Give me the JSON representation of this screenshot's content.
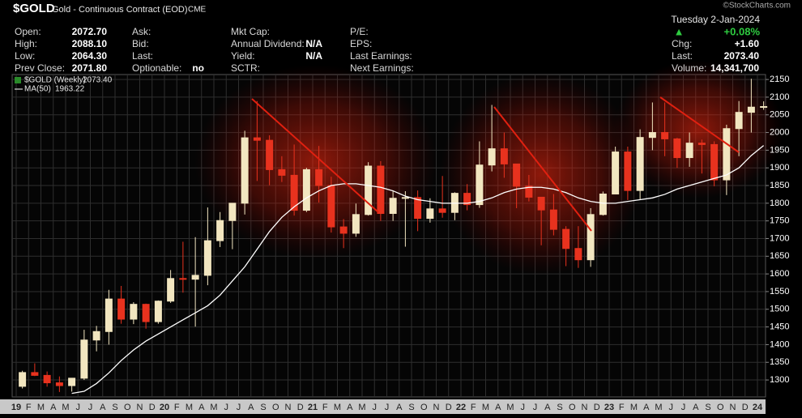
{
  "header": {
    "symbol": "$GOLD",
    "description": "Gold - Continuous Contract (EOD)",
    "exchange": "CME",
    "date": "Tuesday 2-Jan-2024",
    "arrow": "▲",
    "change_pct": "+0.08%",
    "watermark": "©StockCharts.com"
  },
  "stats": [
    [
      {
        "label": "Open:",
        "value": "2072.70"
      },
      {
        "label": "High:",
        "value": "2088.10"
      },
      {
        "label": "Low:",
        "value": "2064.30"
      },
      {
        "label": "Prev Close:",
        "value": "2071.80"
      }
    ],
    [
      {
        "label": "Ask:"
      },
      {
        "label": "Bid:"
      },
      {
        "label": "Last:"
      },
      {
        "label": "Optionable:",
        "value": "no"
      }
    ],
    [
      {
        "label": "Mkt Cap:"
      },
      {
        "label": "Annual Dividend:",
        "value": "N/A"
      },
      {
        "label": "Yield:",
        "value": "N/A"
      },
      {
        "label": "SCTR:"
      }
    ],
    [
      {
        "label": "P/E:"
      },
      {
        "label": "EPS:"
      },
      {
        "label": "Last Earnings:"
      },
      {
        "label": "Next Earnings:"
      }
    ],
    [
      {
        "label": "Chg:",
        "value": "+1.60"
      },
      {
        "label": "Last:",
        "value": "2073.40"
      },
      {
        "label": "Volume:",
        "value": "14,341,700"
      }
    ]
  ],
  "chart_data": {
    "type": "candlestick",
    "legend": {
      "name": "$GOLD (Weekly)",
      "value": "2073.40"
    },
    "up_color": "#f2e6c0",
    "down_color": "#e8321e",
    "categories": [
      "19",
      "F",
      "M",
      "A",
      "M",
      "J",
      "J",
      "A",
      "S",
      "O",
      "N",
      "D",
      "20",
      "F",
      "M",
      "A",
      "M",
      "J",
      "J",
      "A",
      "S",
      "O",
      "N",
      "D",
      "21",
      "F",
      "M",
      "A",
      "M",
      "J",
      "J",
      "A",
      "S",
      "O",
      "N",
      "D",
      "22",
      "F",
      "M",
      "A",
      "M",
      "J",
      "J",
      "A",
      "S",
      "O",
      "N",
      "D",
      "23",
      "F",
      "M",
      "A",
      "M",
      "J",
      "J",
      "A",
      "S",
      "O",
      "N",
      "D",
      "24"
    ],
    "open": [
      1282,
      1321,
      1313,
      1292,
      1284,
      1305,
      1413,
      1437,
      1529,
      1472,
      1514,
      1465,
      1523,
      1587,
      1585,
      1596,
      1694,
      1751,
      1800,
      1985,
      1978,
      1895,
      1879,
      1780,
      1895,
      1850,
      1733,
      1715,
      1768,
      1905,
      1771,
      1814,
      1816,
      1757,
      1784,
      1774,
      1828,
      1796,
      1908,
      1954,
      1911,
      1848,
      1817,
      1781,
      1726,
      1672,
      1640,
      1768,
      1826,
      1945,
      1836,
      1986,
      2000,
      1982,
      1929,
      1970,
      1966,
      1866,
      2011,
      2057,
      2072.7
    ],
    "high": [
      1326,
      1347,
      1324,
      1310,
      1305,
      1442,
      1453,
      1555,
      1566,
      1520,
      1516,
      1525,
      1611,
      1691,
      1704,
      1788,
      1775,
      1800,
      2005,
      2089,
      1992,
      1933,
      1966,
      1900,
      1962,
      1875,
      1755,
      1799,
      1916,
      1919,
      1834,
      1834,
      1836,
      1814,
      1877,
      1831,
      1854,
      1975,
      2078,
      2000,
      1910,
      1880,
      1818,
      1826,
      1735,
      1735,
      1786,
      1833,
      1960,
      1960,
      2009,
      2085,
      2085,
      1985,
      2000,
      1980,
      1975,
      2022,
      2089,
      2152,
      2088.1
    ],
    "low": [
      1276,
      1311,
      1281,
      1266,
      1267,
      1300,
      1381,
      1400,
      1459,
      1458,
      1445,
      1459,
      1518,
      1547,
      1451,
      1568,
      1676,
      1670,
      1768,
      1863,
      1851,
      1860,
      1765,
      1775,
      1802,
      1717,
      1673,
      1705,
      1765,
      1750,
      1750,
      1677,
      1721,
      1745,
      1759,
      1752,
      1780,
      1787,
      1890,
      1872,
      1786,
      1805,
      1681,
      1709,
      1622,
      1617,
      1620,
      1765,
      1825,
      1809,
      1810,
      1950,
      1933,
      1900,
      1903,
      1884,
      1848,
      1823,
      1933,
      2000,
      2064.3
    ],
    "close": [
      1321,
      1313,
      1292,
      1284,
      1305,
      1413,
      1437,
      1529,
      1472,
      1514,
      1465,
      1523,
      1587,
      1585,
      1596,
      1694,
      1751,
      1800,
      1985,
      1978,
      1895,
      1879,
      1780,
      1895,
      1850,
      1733,
      1715,
      1768,
      1905,
      1771,
      1814,
      1816,
      1757,
      1784,
      1774,
      1828,
      1796,
      1908,
      1954,
      1911,
      1848,
      1817,
      1781,
      1726,
      1672,
      1640,
      1768,
      1826,
      1945,
      1836,
      1986,
      2000,
      1982,
      1929,
      1970,
      1966,
      1866,
      2011,
      2057,
      2071.8,
      2073.4
    ],
    "ma": {
      "name": "MA(50)",
      "value": "1963.22",
      "color": "#ffffff",
      "values": [
        null,
        null,
        null,
        null,
        1262,
        1268,
        1290,
        1320,
        1355,
        1385,
        1410,
        1430,
        1450,
        1470,
        1490,
        1510,
        1540,
        1580,
        1620,
        1670,
        1720,
        1760,
        1790,
        1815,
        1835,
        1850,
        1855,
        1855,
        1850,
        1845,
        1835,
        1820,
        1810,
        1805,
        1800,
        1800,
        1800,
        1805,
        1815,
        1830,
        1840,
        1845,
        1845,
        1840,
        1830,
        1815,
        1805,
        1800,
        1800,
        1805,
        1810,
        1815,
        1825,
        1840,
        1850,
        1860,
        1870,
        1880,
        1900,
        1935,
        1963.22
      ]
    },
    "ylim": [
      1252,
      2164
    ],
    "yticks": [
      1300,
      1350,
      1400,
      1450,
      1500,
      1550,
      1600,
      1650,
      1700,
      1750,
      1800,
      1850,
      1900,
      1950,
      2000,
      2050,
      2100,
      2150
    ],
    "grid": true
  }
}
